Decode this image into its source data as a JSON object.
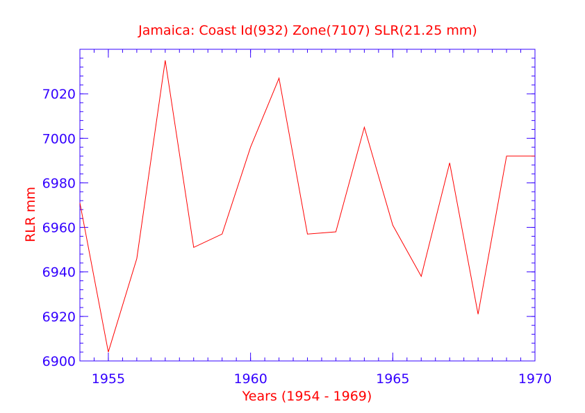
{
  "chart_data": {
    "type": "line",
    "title": "Jamaica:  Coast Id(932) Zone(7107) SLR(21.25 mm)",
    "xlabel": "Years (1954 - 1969)",
    "ylabel": "RLR mm",
    "xlim": [
      1954,
      1970
    ],
    "ylim": [
      6900,
      7040
    ],
    "x_ticks": [
      {
        "value": 1955,
        "label": "1955"
      },
      {
        "value": 1960,
        "label": "1960"
      },
      {
        "value": 1965,
        "label": "1965"
      },
      {
        "value": 1970,
        "label": "1970"
      }
    ],
    "y_ticks": [
      {
        "value": 6900,
        "label": "6900"
      },
      {
        "value": 6920,
        "label": "6920"
      },
      {
        "value": 6940,
        "label": "6940"
      },
      {
        "value": 6960,
        "label": "6960"
      },
      {
        "value": 6980,
        "label": "6980"
      },
      {
        "value": 7000,
        "label": "7000"
      },
      {
        "value": 7020,
        "label": "7020"
      }
    ],
    "x_minor_step": 0.5,
    "y_minor_step": 4,
    "grid": false,
    "series": [
      {
        "x": [
          1954,
          1955,
          1956,
          1957,
          1958,
          1959,
          1960,
          1961,
          1962,
          1963,
          1964,
          1965,
          1966,
          1967,
          1968,
          1969,
          1970
        ],
        "values": [
          6971,
          6904,
          6946,
          7035,
          6951,
          6957,
          6996,
          7027,
          6957,
          6958,
          7005,
          6961,
          6938,
          6989,
          6921,
          6992,
          6992
        ]
      }
    ],
    "colors": {
      "series": "#ff0000",
      "axes": "#3300ff",
      "text": "#ff0000",
      "tick_text": "#3300ff"
    }
  }
}
